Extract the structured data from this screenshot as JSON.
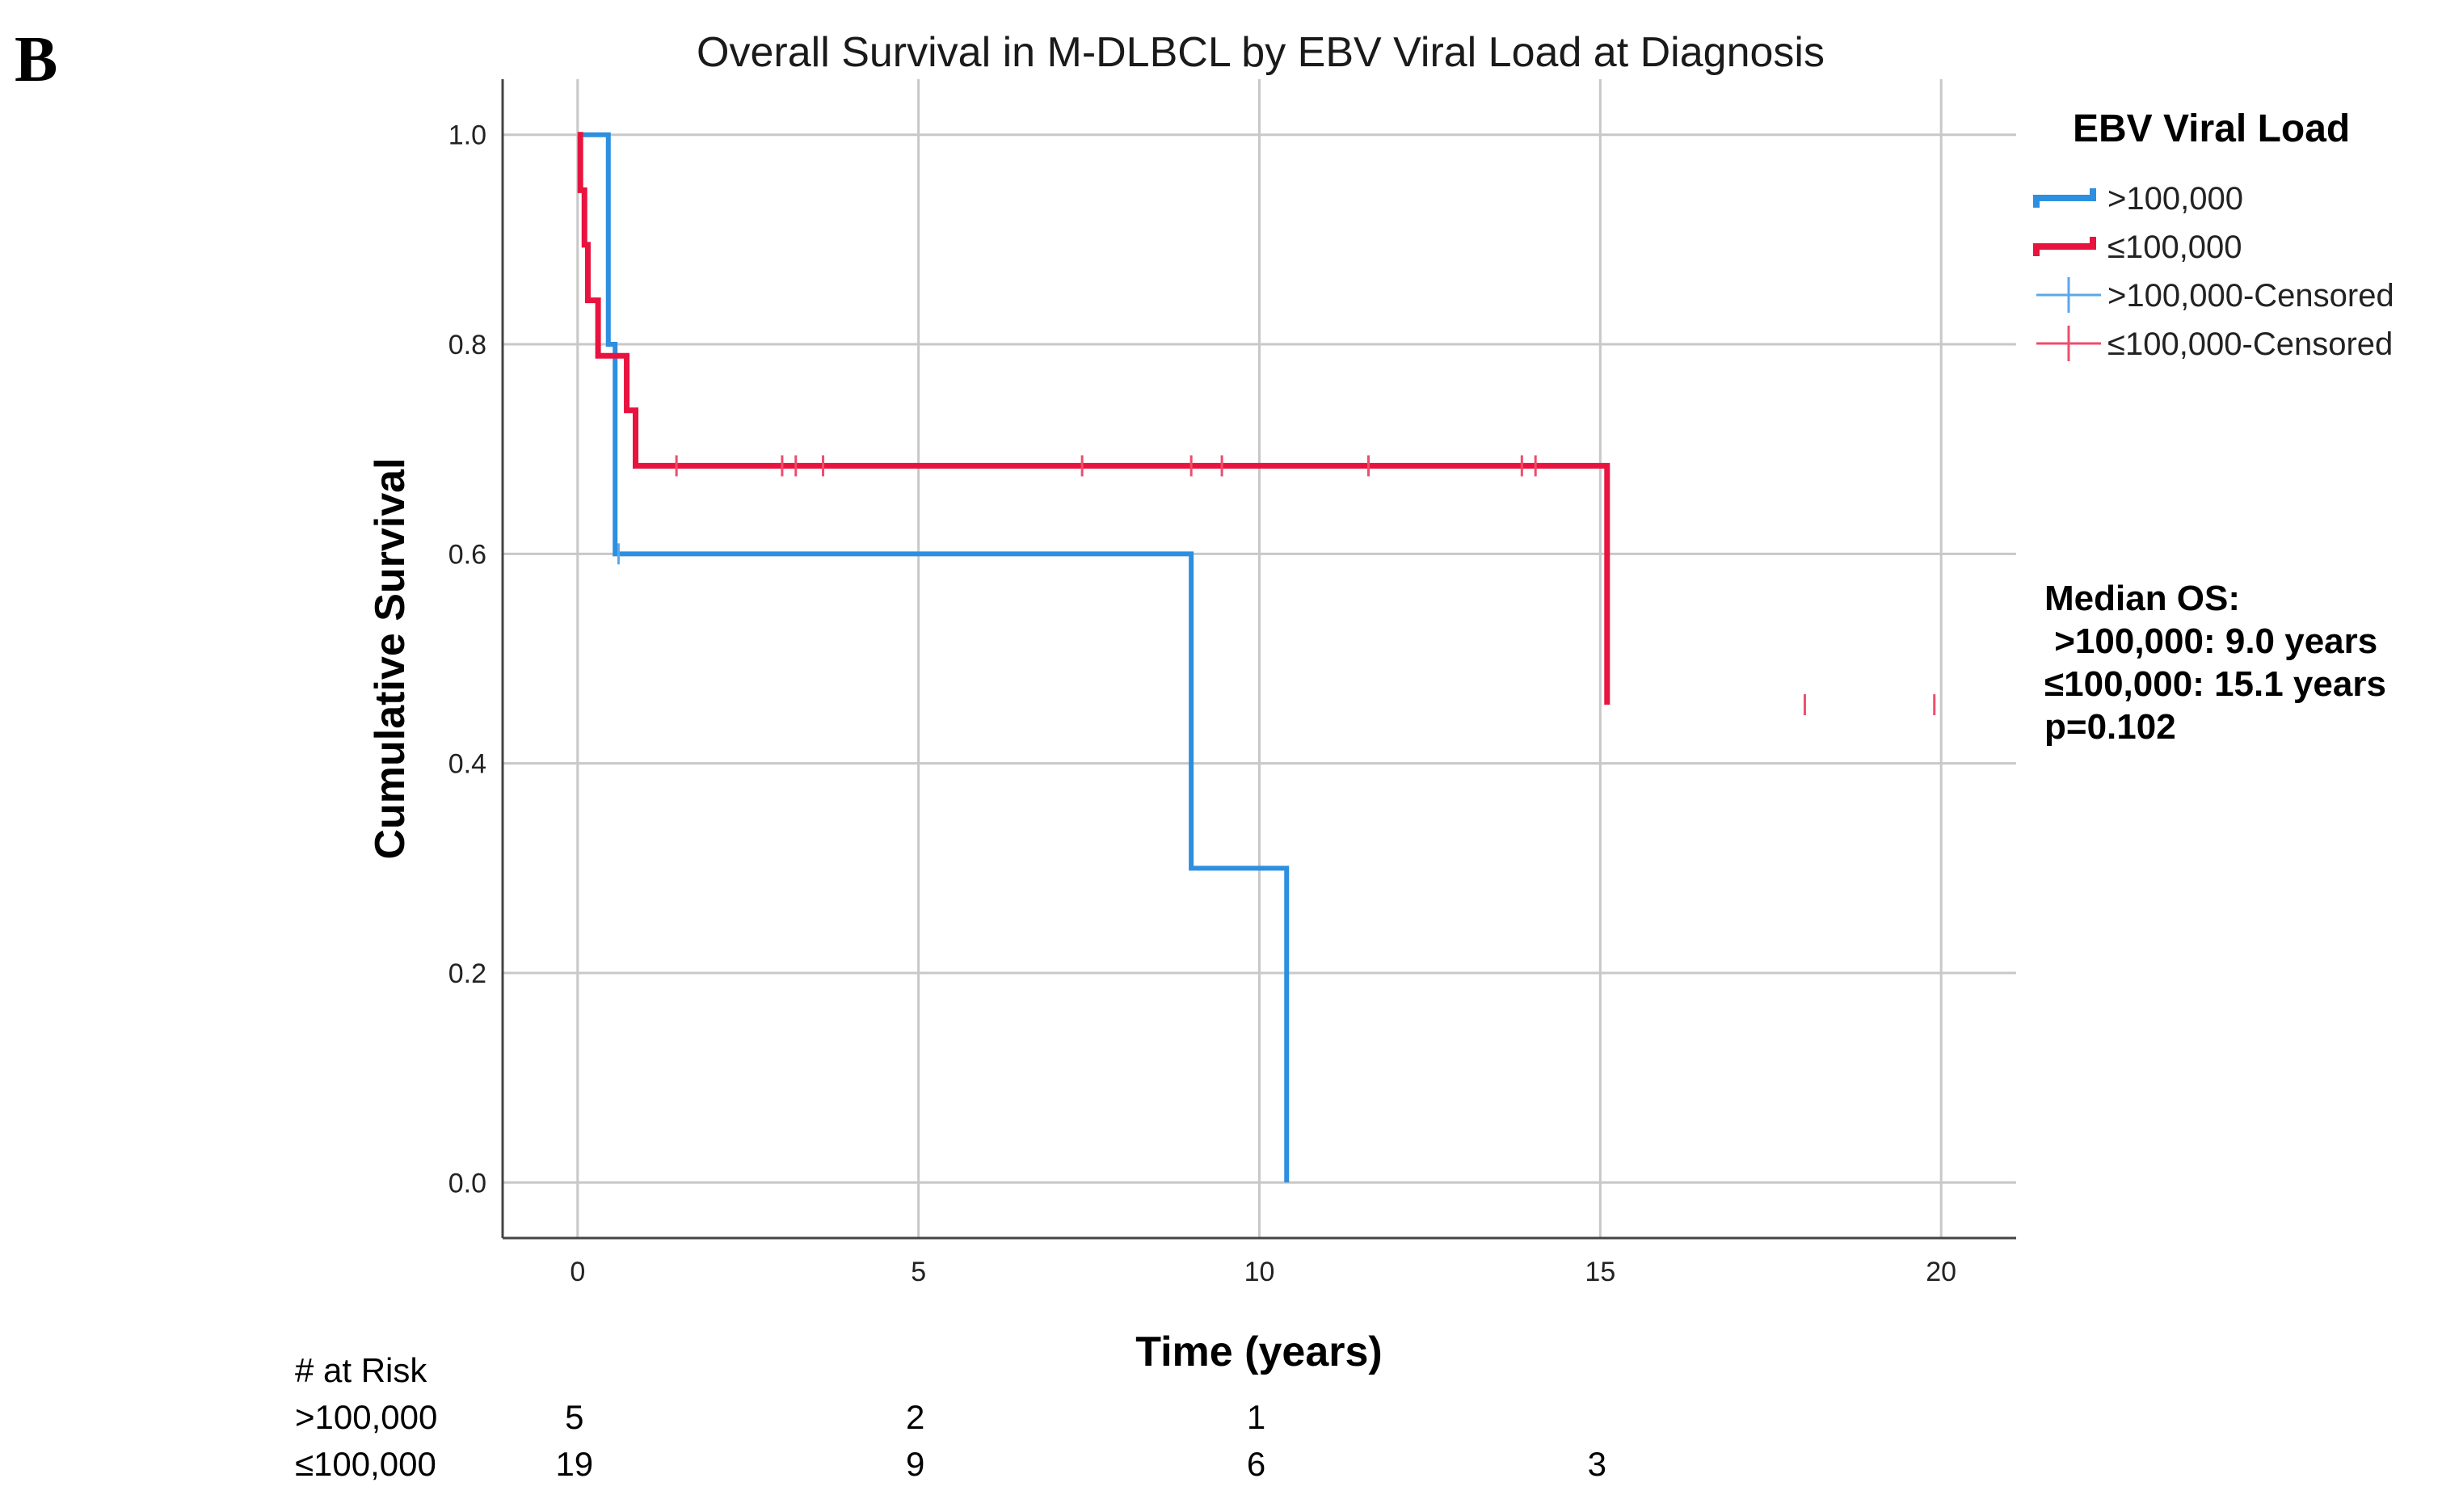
{
  "panel_label": "B",
  "colors": {
    "series_high": "#2d8fe0",
    "series_low": "#e8133f",
    "grid": "#c8c8c8",
    "axis": "#444444",
    "text": "#000000"
  },
  "legend": {
    "title": "EBV Viral Load",
    "items": [
      {
        "label": ">100,000",
        "kind": "line",
        "color": "#2d8fe0"
      },
      {
        "label": "≤100,000",
        "kind": "line",
        "color": "#e8133f"
      },
      {
        "label": ">100,000-Censored",
        "kind": "censor",
        "color": "#5aa8ea"
      },
      {
        "label": "≤100,000-Censored",
        "kind": "censor",
        "color": "#ef4d6b"
      }
    ]
  },
  "annotation": {
    "lines": [
      "Median OS:",
      " >100,000: 9.0 years",
      "≤100,000: 15.1 years",
      "p=0.102"
    ]
  },
  "at_risk": {
    "title": "# at Risk",
    "rows": [
      {
        "label": ">100,000",
        "counts": [
          {
            "t": 0,
            "n": "5"
          },
          {
            "t": 5,
            "n": "2"
          },
          {
            "t": 10,
            "n": "1"
          }
        ]
      },
      {
        "label": "≤100,000",
        "counts": [
          {
            "t": 0,
            "n": "19"
          },
          {
            "t": 5,
            "n": "9"
          },
          {
            "t": 10,
            "n": "6"
          },
          {
            "t": 15,
            "n": "3"
          }
        ]
      }
    ]
  },
  "chart_data": {
    "type": "line",
    "subtype": "kaplan-meier-step",
    "title": "Overall Survival in M-DLBCL by EBV Viral Load at Diagnosis",
    "xlabel": "Time (years)",
    "ylabel": "Cumulative Survival",
    "xlim": [
      -1.1,
      21.1
    ],
    "ylim": [
      -0.053,
      1.053
    ],
    "xticks": [
      0,
      5,
      10,
      15,
      20
    ],
    "yticks": [
      0.0,
      0.2,
      0.4,
      0.6,
      0.8,
      1.0
    ],
    "xtick_labels": [
      "0",
      "5",
      "10",
      "15",
      "20"
    ],
    "ytick_labels": [
      "0.0",
      "0.2",
      "0.4",
      "0.6",
      "0.8",
      "1.0"
    ],
    "grid": true,
    "legend_position": "right",
    "series": [
      {
        "name": ">100,000",
        "color": "#2d8fe0",
        "censor_color": "#5aa8ea",
        "steps": [
          [
            0,
            1.0
          ],
          [
            0.45,
            0.8
          ],
          [
            0.55,
            0.6
          ],
          [
            9.0,
            0.3
          ],
          [
            10.4,
            0.0
          ]
        ],
        "censored": [
          [
            0.6,
            0.6
          ]
        ]
      },
      {
        "name": "≤100,000",
        "color": "#e8133f",
        "censor_color": "#ef4d6b",
        "steps": [
          [
            0,
            1.0
          ],
          [
            0.04,
            0.947
          ],
          [
            0.1,
            0.895
          ],
          [
            0.15,
            0.842
          ],
          [
            0.3,
            0.789
          ],
          [
            0.72,
            0.737
          ],
          [
            0.85,
            0.684
          ],
          [
            15.1,
            0.456
          ]
        ],
        "censored": [
          [
            1.45,
            0.684
          ],
          [
            3.0,
            0.684
          ],
          [
            3.2,
            0.684
          ],
          [
            3.6,
            0.684
          ],
          [
            7.4,
            0.684
          ],
          [
            9.0,
            0.684
          ],
          [
            9.45,
            0.684
          ],
          [
            11.6,
            0.684
          ],
          [
            13.85,
            0.684
          ],
          [
            14.05,
            0.684
          ],
          [
            18.0,
            0.456
          ],
          [
            19.9,
            0.456
          ]
        ]
      }
    ]
  }
}
